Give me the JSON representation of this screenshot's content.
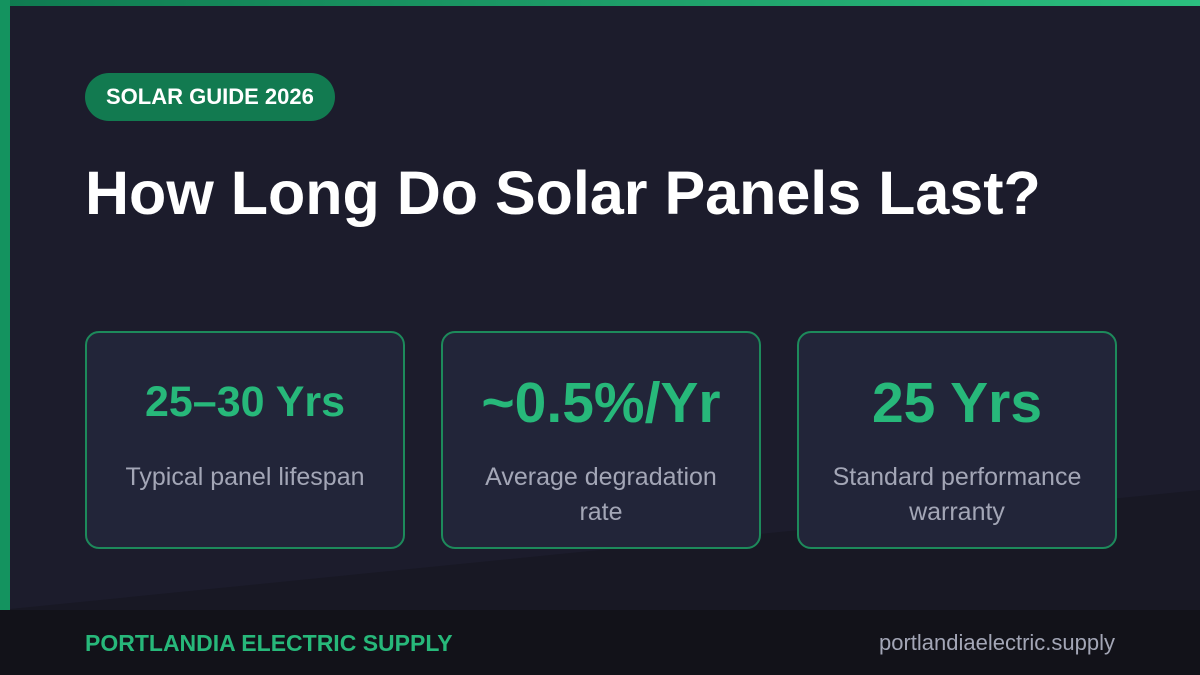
{
  "header": {
    "badge": "SOLAR GUIDE 2026",
    "title": "How Long Do Solar Panels Last?"
  },
  "stats": [
    {
      "value": "25–30 Yrs",
      "label": "Typical panel lifespan"
    },
    {
      "value": "~0.5%/Yr",
      "label": "Average degradation rate"
    },
    {
      "value": "25 Yrs",
      "label": "Standard performance warranty"
    }
  ],
  "footer": {
    "brand": "PORTLANDIA ELECTRIC SUPPLY",
    "url": "portlandiaelectric.supply"
  }
}
